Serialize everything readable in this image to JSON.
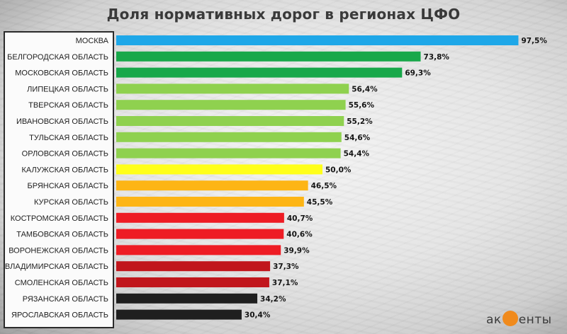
{
  "chart_data": {
    "type": "bar",
    "orientation": "horizontal",
    "title": "Доля нормативных дорог в регионах ЦФО",
    "categories": [
      "МОСКВА",
      "БЕЛГОРОДСКАЯ ОБЛАСТЬ",
      "МОСКОВСКАЯ ОБЛАСТЬ",
      "ЛИПЕЦКАЯ ОБЛАСТЬ",
      "ТВЕРСКАЯ ОБЛАСТЬ",
      "ИВАНОВСКАЯ ОБЛАСТЬ",
      "ТУЛЬСКАЯ ОБЛАСТЬ",
      "ОРЛОВСКАЯ ОБЛАСТЬ",
      "КАЛУЖСКАЯ ОБЛАСТЬ",
      "БРЯНСКАЯ ОБЛАСТЬ",
      "КУРСКАЯ ОБЛАСТЬ",
      "КОСТРОМСКАЯ ОБЛАСТЬ",
      "ТАМБОВСКАЯ ОБЛАСТЬ",
      "ВОРОНЕЖСКАЯ ОБЛАСТЬ",
      "ВЛАДИМИРСКАЯ ОБЛАСТЬ",
      "СМОЛЕНСКАЯ ОБЛАСТЬ",
      "РЯЗАНСКАЯ ОБЛАСТЬ",
      "ЯРОСЛАВСКАЯ ОБЛАСТЬ"
    ],
    "values": [
      97.5,
      73.8,
      69.3,
      56.4,
      55.6,
      55.2,
      54.6,
      54.4,
      50.0,
      46.5,
      45.5,
      40.7,
      40.6,
      39.9,
      37.3,
      37.1,
      34.2,
      30.4
    ],
    "value_labels": [
      "97,5%",
      "73,8%",
      "69,3%",
      "56,4%",
      "55,6%",
      "55,2%",
      "54,6%",
      "54,4%",
      "50,0%",
      "46,5%",
      "45,5%",
      "40,7%",
      "40,6%",
      "39,9%",
      "37,3%",
      "37,1%",
      "34,2%",
      "30,4%"
    ],
    "colors": [
      "#1ea7e8",
      "#18a84a",
      "#18a84a",
      "#8fd14f",
      "#8fd14f",
      "#8fd14f",
      "#8fd14f",
      "#8fd14f",
      "#ffff1a",
      "#fdb515",
      "#fdb515",
      "#ee1c24",
      "#ee1c24",
      "#ee1c24",
      "#c1161c",
      "#c1161c",
      "#1f1f1f",
      "#1f1f1f"
    ],
    "xlim": [
      0,
      100
    ],
    "grid": false,
    "legend": "none"
  },
  "logo": {
    "pre": "ак",
    "mark": "ц",
    "post": "енты"
  }
}
